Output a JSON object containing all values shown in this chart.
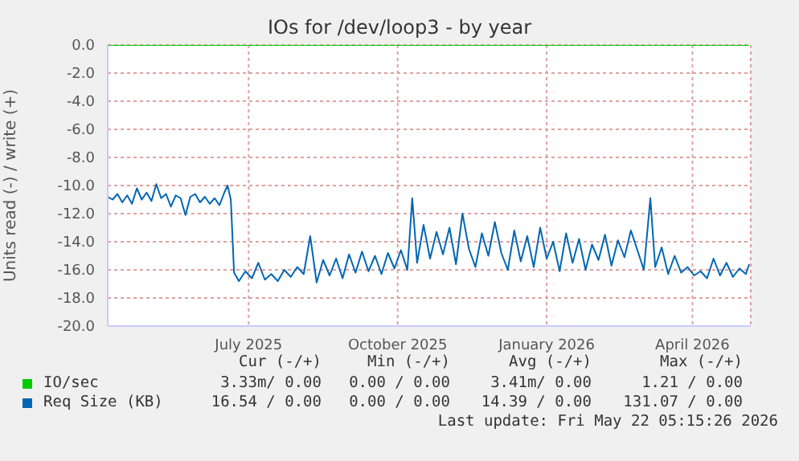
{
  "chart_data": {
    "type": "line",
    "title": "IOs for /dev/loop3 - by year",
    "ylabel": "Units read (-) / write (+)",
    "xlim": [
      "2025-04-20",
      "2026-05-22"
    ],
    "xticks": [
      {
        "value": "2025-07-16",
        "label": "July 2025"
      },
      {
        "value": "2025-10-16",
        "label": "October 2025"
      },
      {
        "value": "2026-01-16",
        "label": "January 2026"
      },
      {
        "value": "2026-04-16",
        "label": "April 2026"
      }
    ],
    "ylim": [
      -20,
      0
    ],
    "yticks": [
      {
        "value": -20,
        "label": "-20.0"
      },
      {
        "value": -18,
        "label": "-18.0"
      },
      {
        "value": -16,
        "label": "-16.0"
      },
      {
        "value": -14,
        "label": "-14.0"
      },
      {
        "value": -12,
        "label": "-12.0"
      },
      {
        "value": -10,
        "label": "-10.0"
      },
      {
        "value": -8,
        "label": "-8.0"
      },
      {
        "value": -6,
        "label": "-6.0"
      },
      {
        "value": -4,
        "label": "-4.0"
      },
      {
        "value": -2,
        "label": "-2.0"
      },
      {
        "value": 0,
        "label": "0.0"
      }
    ],
    "grid": true,
    "legend": "bottom",
    "marker": "none",
    "line_style": "solid",
    "series": [
      {
        "name": "IO/sec",
        "color": "#00cc00",
        "x": [
          "2025-04-20",
          "2026-05-21"
        ],
        "values": [
          0,
          0
        ]
      },
      {
        "name": "Req Size (KB)",
        "color": "#0066b3",
        "x": [
          "2025-04-20",
          "2025-04-23",
          "2025-04-26",
          "2025-04-29",
          "2025-05-02",
          "2025-05-05",
          "2025-05-08",
          "2025-05-11",
          "2025-05-14",
          "2025-05-17",
          "2025-05-20",
          "2025-05-23",
          "2025-05-26",
          "2025-05-29",
          "2025-06-01",
          "2025-06-04",
          "2025-06-07",
          "2025-06-10",
          "2025-06-13",
          "2025-06-16",
          "2025-06-19",
          "2025-06-22",
          "2025-06-25",
          "2025-06-28",
          "2025-07-01",
          "2025-07-03",
          "2025-07-05",
          "2025-07-07",
          "2025-07-10",
          "2025-07-14",
          "2025-07-18",
          "2025-07-22",
          "2025-07-26",
          "2025-07-30",
          "2025-08-03",
          "2025-08-07",
          "2025-08-11",
          "2025-08-15",
          "2025-08-19",
          "2025-08-23",
          "2025-08-27",
          "2025-08-31",
          "2025-09-04",
          "2025-09-08",
          "2025-09-12",
          "2025-09-16",
          "2025-09-20",
          "2025-09-24",
          "2025-09-28",
          "2025-10-02",
          "2025-10-06",
          "2025-10-10",
          "2025-10-14",
          "2025-10-18",
          "2025-10-22",
          "2025-10-25",
          "2025-10-28",
          "2025-11-01",
          "2025-11-05",
          "2025-11-09",
          "2025-11-13",
          "2025-11-17",
          "2025-11-21",
          "2025-11-25",
          "2025-11-29",
          "2025-12-03",
          "2025-12-07",
          "2025-12-11",
          "2025-12-15",
          "2025-12-19",
          "2025-12-23",
          "2025-12-27",
          "2025-12-31",
          "2026-01-04",
          "2026-01-08",
          "2026-01-12",
          "2026-01-16",
          "2026-01-20",
          "2026-01-24",
          "2026-01-28",
          "2026-02-01",
          "2026-02-05",
          "2026-02-09",
          "2026-02-13",
          "2026-02-17",
          "2026-02-21",
          "2026-02-25",
          "2026-03-01",
          "2026-03-05",
          "2026-03-09",
          "2026-03-13",
          "2026-03-17",
          "2026-03-21",
          "2026-03-24",
          "2026-03-28",
          "2026-04-01",
          "2026-04-05",
          "2026-04-09",
          "2026-04-13",
          "2026-04-17",
          "2026-04-21",
          "2026-04-25",
          "2026-04-29",
          "2026-05-03",
          "2026-05-07",
          "2026-05-11",
          "2026-05-15",
          "2026-05-19",
          "2026-05-21"
        ],
        "values": [
          -10.8,
          -11.0,
          -10.6,
          -11.2,
          -10.7,
          -11.3,
          -10.2,
          -11.0,
          -10.5,
          -11.1,
          -9.9,
          -10.9,
          -10.6,
          -11.5,
          -10.7,
          -10.9,
          -12.1,
          -10.8,
          -10.6,
          -11.2,
          -10.8,
          -11.3,
          -10.9,
          -11.4,
          -10.5,
          -10.0,
          -11.0,
          -16.2,
          -16.8,
          -16.1,
          -16.6,
          -15.5,
          -16.7,
          -16.3,
          -16.8,
          -16.0,
          -16.5,
          -15.8,
          -16.3,
          -13.6,
          -16.9,
          -15.3,
          -16.4,
          -15.2,
          -16.6,
          -14.9,
          -16.2,
          -14.7,
          -16.1,
          -15.0,
          -16.3,
          -14.8,
          -15.9,
          -14.6,
          -16.0,
          -10.9,
          -15.5,
          -12.8,
          -15.2,
          -13.3,
          -14.9,
          -13.0,
          -15.6,
          -12.0,
          -14.5,
          -15.8,
          -13.4,
          -15.0,
          -12.6,
          -14.8,
          -16.0,
          -13.2,
          -15.4,
          -13.6,
          -15.8,
          -13.0,
          -15.2,
          -14.0,
          -16.1,
          -13.4,
          -15.5,
          -13.8,
          -16.0,
          -14.2,
          -15.3,
          -13.5,
          -15.7,
          -13.9,
          -15.1,
          -13.2,
          -14.6,
          -16.0,
          -10.9,
          -15.8,
          -14.4,
          -16.3,
          -15.0,
          -16.2,
          -15.8,
          -16.4,
          -16.1,
          -16.6,
          -15.2,
          -16.4,
          -15.5,
          -16.5,
          -15.9,
          -16.3,
          -15.6
        ]
      }
    ],
    "annotations": [
      "Cur (-/+)",
      "Min (-/+)",
      "Avg (-/+)",
      "Max (-/+)",
      "3.33m/ 0.00",
      "0.00 / 0.00",
      "3.41m/ 0.00",
      "1.21 / 0.00",
      "16.54 / 0.00",
      "0.00 / 0.00",
      "14.39 / 0.00",
      "131.07 / 0.00",
      "Last update: Fri May 22 05:15:26 2026"
    ]
  }
}
